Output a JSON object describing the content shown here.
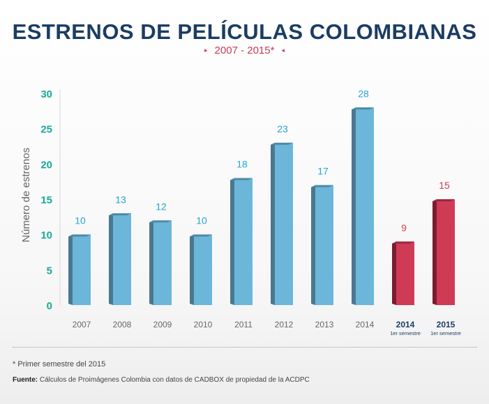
{
  "header": {
    "title": "ESTRENOS DE PELÍCULAS COLOMBIANAS",
    "subtitle": "2007 - 2015*",
    "subtitle_left_marker": "▸",
    "subtitle_right_marker": "◂"
  },
  "footer": {
    "note": "* Primer semestre del 2015",
    "source_label": "Fuente:",
    "source_text": "Cálculos de Proimágenes Colombia con datos de CADBOX de propiedad de la ACDPC"
  },
  "colors": {
    "title": "#1b3d63",
    "accent_red": "#c83a55",
    "axis_text": "#1aa89a",
    "blue_front": "#6cb6d9",
    "blue_side": "#4a7890",
    "blue_top": "#4f8aa6",
    "blue_label": "#27a3d4",
    "red_front": "#cf3a55",
    "red_side": "#7a1d30",
    "red_top": "#9a2a3f",
    "red_label": "#d23b56",
    "year_label_dark": "#1b3d63"
  },
  "chart_data": {
    "type": "bar",
    "ylabel": "Número de estrenos",
    "ylim": [
      0,
      30
    ],
    "yticks": [
      0,
      5,
      10,
      15,
      20,
      25,
      30
    ],
    "grid": false,
    "categories": [
      "2007",
      "2008",
      "2009",
      "2010",
      "2011",
      "2012",
      "2013",
      "2014",
      "2014",
      "2015"
    ],
    "sublabels": [
      "",
      "",
      "",
      "",
      "",
      "",
      "",
      "",
      "1er semestre",
      "1er semestre"
    ],
    "values": [
      10,
      13,
      12,
      10,
      18,
      23,
      17,
      28,
      9,
      15
    ],
    "highlight": [
      false,
      false,
      false,
      false,
      false,
      false,
      false,
      false,
      true,
      true
    ]
  }
}
